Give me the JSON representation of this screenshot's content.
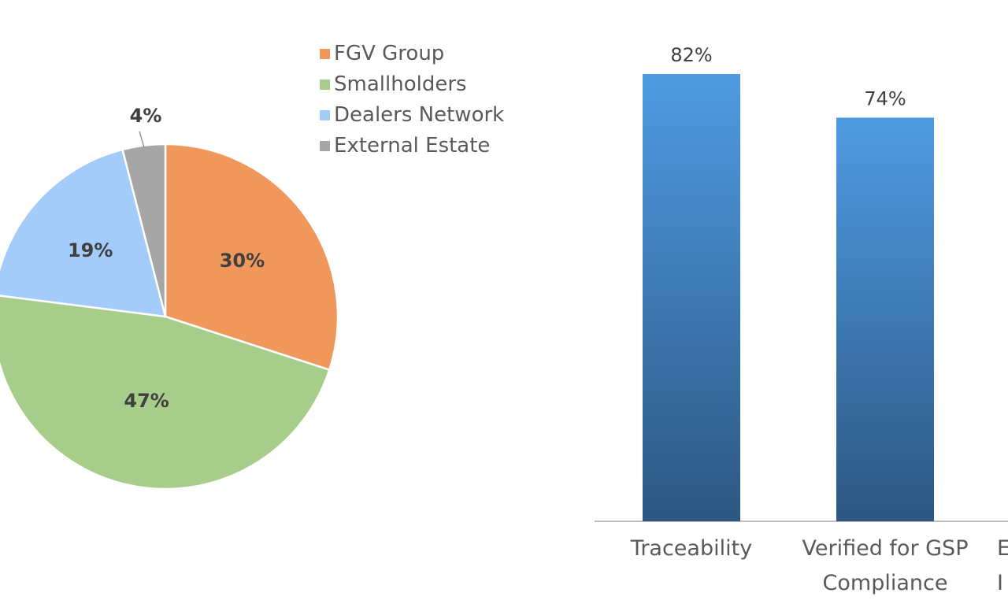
{
  "chart_data": [
    {
      "type": "pie",
      "categories": [
        "FGV Group",
        "Smallholders",
        "Dealers Network",
        "External Estate"
      ],
      "values": [
        30,
        47,
        19,
        4
      ],
      "labels": [
        "30%",
        "47%",
        "19%",
        "4%"
      ],
      "colors": [
        "#F0975B",
        "#A7CD8A",
        "#A4CCFA",
        "#A6A6A6"
      ],
      "legend": "right"
    },
    {
      "type": "bar",
      "categories": [
        [
          "Traceability"
        ],
        [
          "Verified for GSP",
          "Compliance"
        ],
        [
          "E",
          "I"
        ]
      ],
      "values": [
        82,
        74,
        null
      ],
      "labels": [
        "82%",
        "74%",
        ""
      ],
      "colors": {
        "top": "#4F9BE3",
        "bottom": "#2C5782"
      },
      "ylim": [
        0,
        82
      ]
    }
  ]
}
